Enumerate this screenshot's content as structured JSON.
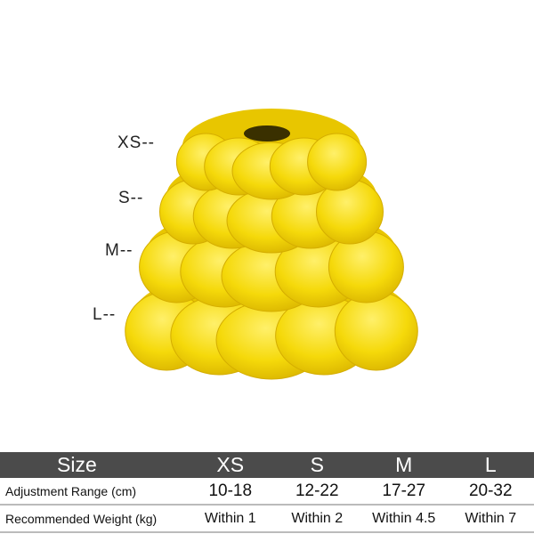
{
  "product": {
    "color": "#f5d90a",
    "size_markers": [
      "XS--",
      "S--",
      "M--",
      "L--"
    ]
  },
  "table": {
    "header": [
      "Size",
      "XS",
      "S",
      "M",
      "L"
    ],
    "rows": [
      [
        "Adjustment Range (cm)",
        "10-18",
        "12-22",
        "17-27",
        "20-32"
      ],
      [
        "Recommended Weight (kg)",
        "Within 1",
        "Within 2",
        "Within 4.5",
        "Within 7"
      ]
    ]
  }
}
